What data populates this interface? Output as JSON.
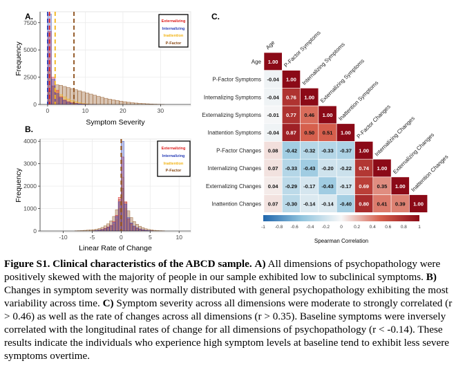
{
  "panel_labels": {
    "a": "A.",
    "b": "B.",
    "c": "C."
  },
  "hist_a": {
    "xlabel": "Symptom Severity",
    "ylabel": "Frequency",
    "xticks": [
      "0",
      "10",
      "20",
      "30"
    ],
    "yticks": [
      "0",
      "2500",
      "5000",
      "7500"
    ],
    "legend": [
      "Externalizing",
      "Internalizing",
      "Inattention",
      "P-Factor"
    ]
  },
  "hist_b": {
    "xlabel": "Linear Rate of Change",
    "ylabel": "Frequency",
    "xticks": [
      "-10",
      "-5",
      "0",
      "5",
      "10"
    ],
    "yticks": [
      "0",
      "1000",
      "2000",
      "3000",
      "4000"
    ],
    "legend": [
      "Externalizing",
      "Internalizing",
      "Inattention",
      "P-Factor"
    ]
  },
  "heatmap": {
    "labels": [
      "Age",
      "P-Factor Symptoms",
      "Internalizing Symptoms",
      "Externalizing Symptoms",
      "Inattention Symptoms",
      "P-Factor Changes",
      "Internalizing  Changes",
      "Externalizing Changes",
      "Inattention Changes"
    ],
    "col_labels": [
      "Age",
      "P-Factor Symptoms",
      "Internalizing Symptoms",
      "Externalizing Symptoms",
      "Inattention Symptoms",
      "P-Factor Changes",
      "Internalizing  Changes",
      "Externalizing Changes",
      "Inattention Changes"
    ],
    "legend_title": "Spearman Correlation",
    "legend_ticks": [
      "-1",
      "-0.8",
      "-0.6",
      "-0.4",
      "-0.2",
      "0",
      "0.2",
      "0.4",
      "0.6",
      "0.8",
      "1"
    ]
  },
  "chart_data": [
    {
      "type": "bar",
      "title": "",
      "xlabel": "Symptom Severity",
      "ylabel": "Frequency",
      "xlim": [
        -2,
        38
      ],
      "ylim": [
        0,
        8500
      ],
      "bins": [
        0,
        1,
        2,
        3,
        4,
        5,
        6,
        7,
        8,
        9,
        10,
        11,
        12,
        13,
        14,
        15,
        16,
        17,
        18,
        19,
        20,
        21,
        22,
        23,
        24,
        25,
        26,
        27,
        28,
        29,
        30
      ],
      "series": [
        {
          "name": "Externalizing",
          "color": "#dd1c1c",
          "values": [
            6700,
            2500,
            1300,
            700,
            400,
            250,
            150,
            100,
            60,
            40,
            20,
            10,
            5,
            0,
            0,
            0,
            0,
            0,
            0,
            0,
            0,
            0,
            0,
            0,
            0,
            0,
            0,
            0,
            0,
            0,
            0
          ]
        },
        {
          "name": "Internalizing",
          "color": "#2a3fb8",
          "values": [
            8300,
            2300,
            1000,
            600,
            350,
            200,
            120,
            80,
            50,
            30,
            20,
            10,
            5,
            0,
            0,
            0,
            0,
            0,
            0,
            0,
            0,
            0,
            0,
            0,
            0,
            0,
            0,
            0,
            0,
            0,
            0
          ]
        },
        {
          "name": "Inattention",
          "color": "#f2b416",
          "values": [
            3100,
            1600,
            1200,
            900,
            700,
            500,
            350,
            250,
            150,
            90,
            50,
            20,
            5,
            0,
            0,
            0,
            0,
            0,
            0,
            0,
            0,
            0,
            0,
            0,
            0,
            0,
            0,
            0,
            0,
            0,
            0
          ]
        },
        {
          "name": "P-Factor",
          "color": "#8a4b16",
          "values": [
            1250,
            1700,
            1800,
            1750,
            1650,
            1550,
            1450,
            1350,
            1250,
            1150,
            1050,
            950,
            850,
            750,
            650,
            560,
            480,
            420,
            360,
            300,
            250,
            200,
            160,
            130,
            100,
            80,
            60,
            40,
            30,
            20,
            10
          ]
        }
      ]
    },
    {
      "type": "bar",
      "title": "",
      "xlabel": "Linear Rate of Change",
      "ylabel": "Frequency",
      "xlim": [
        -14,
        12
      ],
      "ylim": [
        0,
        4100
      ],
      "bins": [
        -8,
        -7.5,
        -7,
        -6.5,
        -6,
        -5.5,
        -5,
        -4.5,
        -4,
        -3.5,
        -3,
        -2.5,
        -2,
        -1.5,
        -1,
        -0.5,
        0,
        0.5,
        1,
        1.5,
        2,
        2.5,
        3,
        3.5,
        4,
        4.5,
        5,
        5.5,
        6,
        6.5,
        7
      ],
      "series": [
        {
          "name": "Externalizing",
          "color": "#dd1c1c",
          "values": [
            0,
            0,
            0,
            0,
            0,
            0,
            10,
            20,
            40,
            70,
            120,
            180,
            250,
            420,
            700,
            1500,
            3300,
            1300,
            550,
            330,
            200,
            130,
            80,
            50,
            30,
            20,
            10,
            0,
            0,
            0,
            0
          ]
        },
        {
          "name": "Internalizing",
          "color": "#2a3fb8",
          "values": [
            0,
            0,
            0,
            0,
            0,
            0,
            10,
            20,
            40,
            60,
            100,
            160,
            230,
            380,
            650,
            1300,
            4000,
            1200,
            600,
            360,
            220,
            140,
            90,
            55,
            30,
            20,
            10,
            0,
            0,
            0,
            0
          ]
        },
        {
          "name": "Inattention",
          "color": "#f2b416",
          "values": [
            0,
            0,
            0,
            0,
            0,
            0,
            10,
            20,
            40,
            60,
            100,
            140,
            200,
            300,
            500,
            1000,
            2400,
            1000,
            500,
            300,
            180,
            110,
            70,
            40,
            25,
            15,
            10,
            0,
            0,
            0,
            0
          ]
        },
        {
          "name": "P-Factor",
          "color": "#8a4b16",
          "values": [
            10,
            15,
            20,
            30,
            40,
            50,
            60,
            80,
            110,
            160,
            230,
            320,
            450,
            650,
            950,
            1400,
            1900,
            1300,
            900,
            600,
            420,
            300,
            210,
            150,
            100,
            70,
            50,
            30,
            20,
            15,
            10
          ]
        }
      ]
    },
    {
      "type": "heatmap",
      "title": "",
      "labels": [
        "Age",
        "P-Factor Symptoms",
        "Internalizing Symptoms",
        "Externalizing Symptoms",
        "Inattention Symptoms",
        "P-Factor Changes",
        "Internalizing  Changes",
        "Externalizing Changes",
        "Inattention Changes"
      ],
      "lower_triangle": [
        [
          "1.00"
        ],
        [
          "-0.04",
          "1.00"
        ],
        [
          "-0.04",
          "0.76",
          "1.00"
        ],
        [
          "-0.01",
          "0.77",
          "0.46",
          "1.00"
        ],
        [
          "-0.04",
          "0.87",
          "0.50",
          "0.51",
          "1.00"
        ],
        [
          "0.08",
          "-0.42",
          "-0.32",
          "-0.33",
          "-0.37",
          "1.00"
        ],
        [
          "0.07",
          "-0.33",
          "-0.43",
          "-0.20",
          "-0.22",
          "0.74",
          "1.00"
        ],
        [
          "0.04",
          "-0.29",
          "-0.17",
          "-0.43",
          "-0.17",
          "0.69",
          "0.35",
          "1.00"
        ],
        [
          "0.07",
          "-0.30",
          "-0.14",
          "-0.14",
          "-0.40",
          "0.80",
          "0.41",
          "0.39",
          "1.00"
        ]
      ],
      "scale": [
        -1,
        1
      ],
      "legend_title": "Spearman Correlation"
    }
  ],
  "caption": {
    "title": "Figure S1. Clinical characteristics of the ABCD sample.",
    "a_label": "A)",
    "a_text": "All dimensions of psychopathology were positively skewed with the majority of people in our sample exhibited low to subclinical symptoms.",
    "b_label": "B)",
    "b_text": "Changes in symptom severity was normally distributed with general psychopathology exhibiting the most variability across time.",
    "c_label": "C)",
    "c_text": "Symptom severity across all dimensions were moderate to strongly correlated (r > 0.46) as well as the rate of changes across all dimensions (r > 0.35). Baseline symptoms were inversely correlated with the longitudinal rates of change for all dimensions of psychopathology (r < -0.14). These results indicate the individuals who experience high symptom levels at baseline tend to exhibit less severe symptoms overtime."
  },
  "colors": {
    "externalizing": "#dd1c1c",
    "internalizing": "#2a3fb8",
    "inattention": "#f2b416",
    "pfactor": "#8a4b16",
    "neg": "#2166ac",
    "pos": "#8b0a17"
  }
}
